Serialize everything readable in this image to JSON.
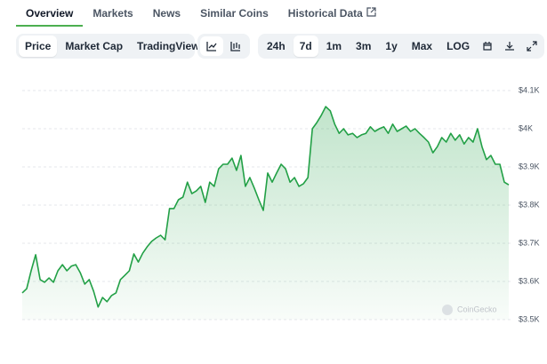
{
  "tabs": [
    "Overview",
    "Markets",
    "News",
    "Similar Coins",
    "Historical Data"
  ],
  "active_tab": 0,
  "view_buttons": [
    "Price",
    "Market Cap",
    "TradingView"
  ],
  "active_view": 0,
  "range_buttons": [
    "24h",
    "7d",
    "1m",
    "3m",
    "1y",
    "Max",
    "LOG"
  ],
  "active_range": 1,
  "chart_data": {
    "type": "line",
    "watermark": "CoinGecko",
    "series": [
      {
        "color": "#22a046",
        "values": [
          3570,
          3581,
          3628,
          3670,
          3605,
          3598,
          3609,
          3598,
          3628,
          3644,
          3628,
          3640,
          3644,
          3623,
          3593,
          3605,
          3574,
          3533,
          3558,
          3547,
          3563,
          3570,
          3605,
          3616,
          3628,
          3672,
          3651,
          3674,
          3691,
          3705,
          3714,
          3721,
          3709,
          3791,
          3791,
          3814,
          3821,
          3860,
          3830,
          3837,
          3849,
          3807,
          3860,
          3849,
          3895,
          3907,
          3907,
          3923,
          3891,
          3930,
          3849,
          3872,
          3844,
          3814,
          3786,
          3884,
          3860,
          3884,
          3907,
          3895,
          3860,
          3872,
          3849,
          3856,
          3872,
          4000,
          4016,
          4035,
          4058,
          4047,
          4012,
          3988,
          4000,
          3984,
          3988,
          3977,
          3984,
          3988,
          4005,
          3993,
          4000,
          4005,
          3988,
          4012,
          3993,
          4000,
          4007,
          3993,
          4000,
          3988,
          3977,
          3965,
          3937,
          3953,
          3977,
          3965,
          3988,
          3970,
          3984,
          3960,
          3977,
          3965,
          4000,
          3953,
          3919,
          3930,
          3907,
          3907,
          3860,
          3853
        ]
      }
    ],
    "ylim": [
      3500,
      4100
    ],
    "yticks": [
      {
        "value": 3500,
        "label": "$3.5K"
      },
      {
        "value": 3600,
        "label": "$3.6K"
      },
      {
        "value": 3700,
        "label": "$3.7K"
      },
      {
        "value": 3800,
        "label": "$3.8K"
      },
      {
        "value": 3900,
        "label": "$3.9K"
      },
      {
        "value": 4000,
        "label": "$4K"
      },
      {
        "value": 4100,
        "label": "$4.1K"
      }
    ],
    "grid": true
  }
}
